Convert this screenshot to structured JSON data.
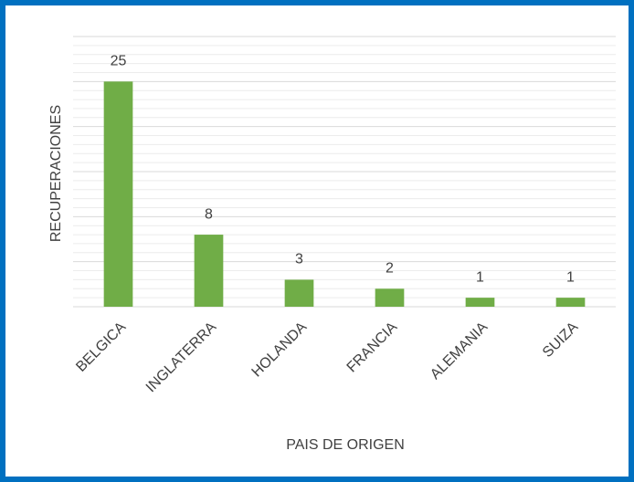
{
  "chart_data": {
    "type": "bar",
    "x_label": "PAIS DE ORIGEN",
    "y_label": "RECUPERACIONES",
    "categories": [
      "BELGICA",
      "INGLATERRA",
      "HOLANDA",
      "FRANCIA",
      "ALEMANIA",
      "SUIZA"
    ],
    "values": [
      25,
      8,
      3,
      2,
      1,
      1
    ],
    "color": "#70ad47",
    "ylim": [
      0,
      30
    ],
    "yticks": [
      0,
      5,
      10,
      15,
      20,
      25,
      30
    ],
    "grid": true
  }
}
